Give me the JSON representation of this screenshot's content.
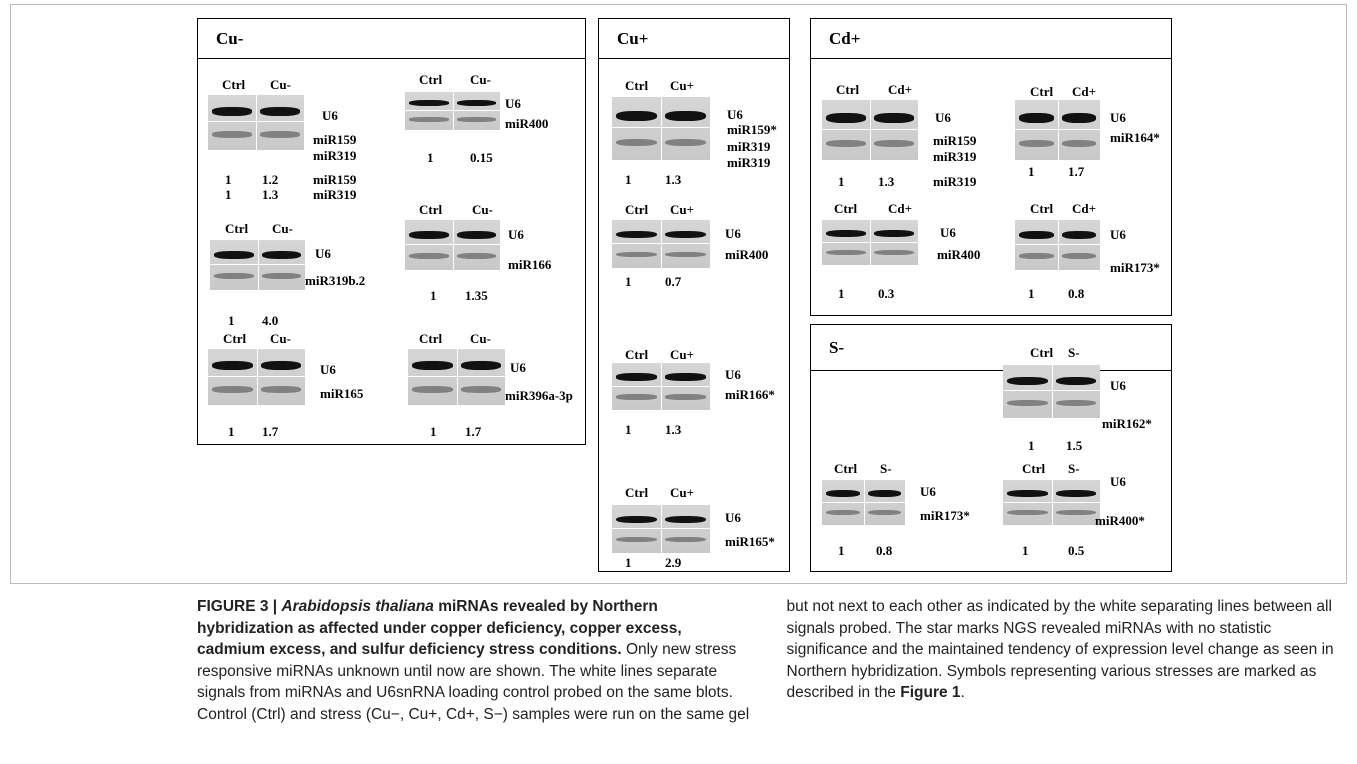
{
  "panels": [
    {
      "title": "Cu-",
      "blots": [
        {
          "headers": [
            "Ctrl",
            "Cu-"
          ],
          "probes": [
            "U6",
            "miR159",
            "miR319"
          ],
          "quant": [
            [
              "1",
              "1.2",
              "miR159"
            ],
            [
              "1",
              "1.3",
              "miR319"
            ]
          ]
        },
        {
          "headers": [
            "Ctrl",
            "Cu-"
          ],
          "probes": [
            "U6",
            "miR400"
          ],
          "quant": [
            [
              "1",
              "0.15"
            ]
          ]
        },
        {
          "headers": [
            "Ctrl",
            "Cu-"
          ],
          "probes": [
            "U6",
            "miR319b.2"
          ],
          "quant": [
            [
              "1",
              "4.0"
            ]
          ]
        },
        {
          "headers": [
            "Ctrl",
            "Cu-"
          ],
          "probes": [
            "U6",
            "miR166"
          ],
          "quant": [
            [
              "1",
              "1.35"
            ]
          ]
        },
        {
          "headers": [
            "Ctrl",
            "Cu-"
          ],
          "probes": [
            "U6",
            "miR165"
          ],
          "quant": [
            [
              "1",
              "1.7"
            ]
          ]
        },
        {
          "headers": [
            "Ctrl",
            "Cu-"
          ],
          "probes": [
            "U6",
            "miR396a-3p"
          ],
          "quant": [
            [
              "1",
              "1.7"
            ]
          ]
        }
      ]
    },
    {
      "title": "Cu+",
      "blots": [
        {
          "headers": [
            "Ctrl",
            "Cu+"
          ],
          "probes": [
            "U6",
            "miR159*",
            "miR319",
            "miR319"
          ],
          "quant": [
            [
              "1",
              "1.3"
            ]
          ]
        },
        {
          "headers": [
            "Ctrl",
            "Cu+"
          ],
          "probes": [
            "U6",
            "miR400"
          ],
          "quant": [
            [
              "1",
              "0.7"
            ]
          ]
        },
        {
          "headers": [
            "Ctrl",
            "Cu+"
          ],
          "probes": [
            "U6",
            "miR166*"
          ],
          "quant": [
            [
              "1",
              "1.3"
            ]
          ]
        },
        {
          "headers": [
            "Ctrl",
            "Cu+"
          ],
          "probes": [
            "U6",
            "miR165*"
          ],
          "quant": [
            [
              "1",
              "2.9"
            ]
          ]
        }
      ]
    },
    {
      "title": "Cd+",
      "blots": [
        {
          "headers": [
            "Ctrl",
            "Cd+"
          ],
          "probes": [
            "U6",
            "miR159",
            "miR319"
          ],
          "quant": [
            [
              "1",
              "1.3",
              "miR319"
            ]
          ]
        },
        {
          "headers": [
            "Ctrl",
            "Cd+"
          ],
          "probes": [
            "U6",
            "miR164*"
          ],
          "quant": [
            [
              "1",
              "1.7"
            ]
          ]
        },
        {
          "headers": [
            "Ctrl",
            "Cd+"
          ],
          "probes": [
            "U6",
            "miR400"
          ],
          "quant": [
            [
              "1",
              "0.3"
            ]
          ]
        },
        {
          "headers": [
            "Ctrl",
            "Cd+"
          ],
          "probes": [
            "U6",
            "miR173*"
          ],
          "quant": [
            [
              "1",
              "0.8"
            ]
          ]
        }
      ]
    },
    {
      "title": "S-",
      "blots": [
        {
          "headers": [
            "Ctrl",
            "S-"
          ],
          "probes": [
            "U6",
            "miR162*"
          ],
          "quant": [
            [
              "1",
              "1.5"
            ]
          ]
        },
        {
          "headers": [
            "Ctrl",
            "S-"
          ],
          "probes": [
            "U6",
            "miR173*"
          ],
          "quant": [
            [
              "1",
              "0.8"
            ]
          ]
        },
        {
          "headers": [
            "Ctrl",
            "S-"
          ],
          "probes": [
            "U6",
            "miR400*"
          ],
          "quant": [
            [
              "1",
              "0.5"
            ]
          ]
        }
      ]
    }
  ],
  "caption": {
    "label": "FIGURE 3 |",
    "species": "Arabidopsis thaliana",
    "title": "miRNAs revealed by Northern hybridization as affected under copper deficiency, copper excess, cadmium excess, and sulfur deficiency stress conditions.",
    "body": "Only new stress responsive miRNAs unknown until now are shown. The white lines separate signals from miRNAs and U6snRNA loading control probed on the same blots. Control (Ctrl) and stress (Cu−, Cu+, Cd+, S−) samples were run on the same gel but not next to each other as indicated by the white separating lines between all signals probed. The star marks NGS revealed miRNAs with no statistic significance and the maintained tendency of expression level change as seen in Northern hybridization. Symbols representing various stresses are marked as described in the",
    "ref": "Figure 1",
    "end": "."
  }
}
